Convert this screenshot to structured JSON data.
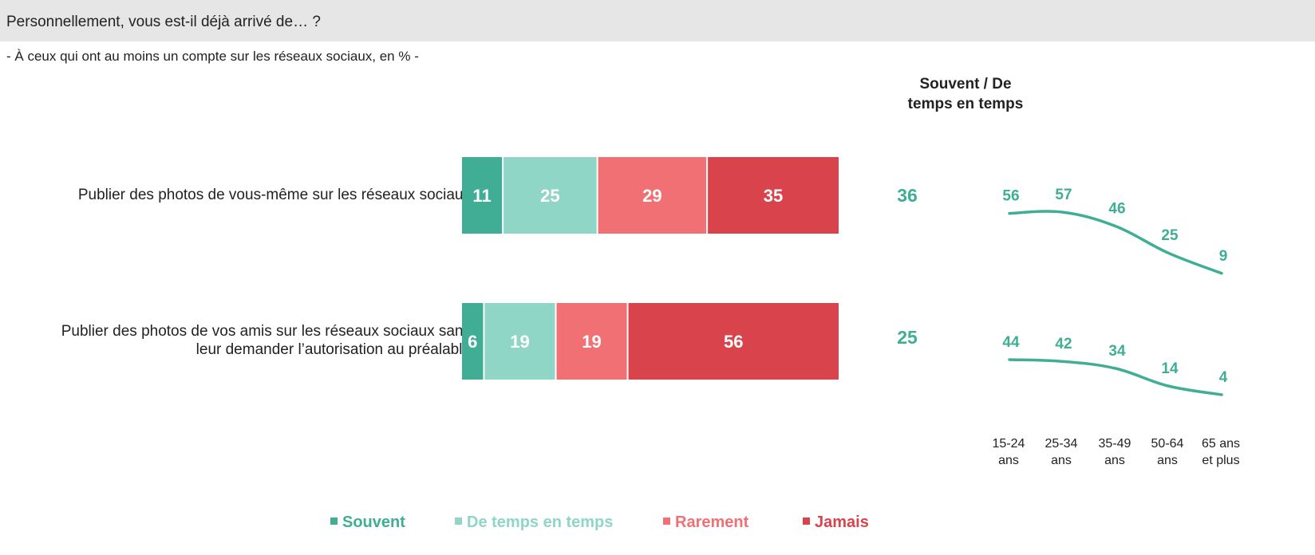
{
  "header": {
    "title": "Personnellement, vous est-il déjà arrivé de… ?",
    "subtitle": "- À ceux qui ont au moins un compte sur les réseaux sociaux, en % -"
  },
  "summary_header": [
    "Souvent / De",
    "temps en temps"
  ],
  "colors": {
    "souvent": "#3fae95",
    "de_temps_en_temps": "#8fd6c6",
    "rarement": "#f07074",
    "jamais": "#d9444c",
    "summary_text": "#3fae95"
  },
  "rows": [
    {
      "label_lines": [
        "Publier des photos de vous-même sur les réseaux sociaux"
      ],
      "summary": "36"
    },
    {
      "label_lines": [
        "Publier des photos de vos amis sur les réseaux sociaux sans",
        "leur demander l’autorisation au préalable"
      ],
      "summary": "25"
    }
  ],
  "age_axis": [
    [
      "15-24",
      "ans"
    ],
    [
      "25-34",
      "ans"
    ],
    [
      "35-49",
      "ans"
    ],
    [
      "50-64",
      "ans"
    ],
    [
      "65 ans",
      "et plus"
    ]
  ],
  "legend": [
    {
      "label": "Souvent",
      "color": "#3fae95"
    },
    {
      "label": "De temps en temps",
      "color": "#8fd6c6"
    },
    {
      "label": "Rarement",
      "color": "#f07074"
    },
    {
      "label": "Jamais",
      "color": "#d9444c"
    }
  ],
  "chart_data": [
    {
      "type": "bar",
      "stacked": true,
      "orientation": "horizontal",
      "categories": [
        "Publier des photos de vous-même sur les réseaux sociaux",
        "Publier des photos de vos amis sur les réseaux sociaux sans leur demander l’autorisation au préalable"
      ],
      "series": [
        {
          "name": "Souvent",
          "values": [
            11,
            6
          ]
        },
        {
          "name": "De temps en temps",
          "values": [
            25,
            19
          ]
        },
        {
          "name": "Rarement",
          "values": [
            29,
            19
          ]
        },
        {
          "name": "Jamais",
          "values": [
            35,
            56
          ]
        }
      ],
      "legend": "bottom"
    },
    {
      "type": "line",
      "categories": [
        "15-24 ans",
        "25-34 ans",
        "35-49 ans",
        "50-64 ans",
        "65 ans et plus"
      ],
      "series": [
        {
          "values": [
            56,
            57,
            46,
            25,
            9
          ]
        },
        {
          "values": [
            44,
            42,
            34,
            14,
            4
          ]
        }
      ]
    }
  ]
}
